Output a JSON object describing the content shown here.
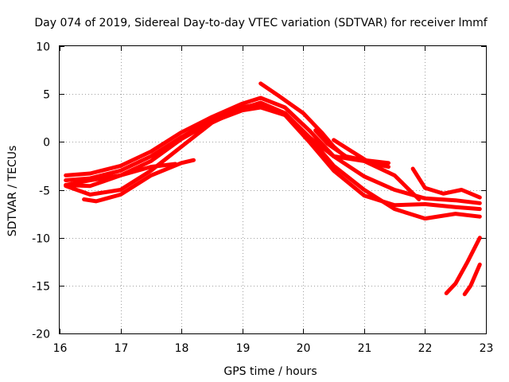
{
  "chart_data": {
    "type": "scatter",
    "title": "Day 074 of 2019, Sidereal Day-to-day VTEC variation (SDTVAR) for receiver lmmf",
    "xlabel": "GPS time / hours",
    "ylabel": "SDTVAR / TECUs",
    "xlim": [
      16,
      23
    ],
    "ylim": [
      -20,
      10
    ],
    "xticks": [
      16,
      17,
      18,
      19,
      20,
      21,
      22,
      23
    ],
    "xtick_labels": [
      "16",
      "17",
      "18",
      "19",
      "20",
      "21",
      "22",
      "23"
    ],
    "yticks": [
      -20,
      -15,
      -10,
      -5,
      0,
      5,
      10
    ],
    "ytick_labels": [
      "-20",
      "-15",
      "-10",
      "-5",
      "0",
      "5",
      "10"
    ],
    "grid": true,
    "marker": "plus",
    "color": "#ff0000",
    "series": [
      {
        "name": "trace-1",
        "x": [
          16.1,
          16.5,
          17.0,
          17.5,
          18.0,
          18.5,
          19.0,
          19.3,
          19.7,
          20.1,
          20.5,
          21.0,
          21.5,
          22.0,
          22.5,
          22.9
        ],
        "y": [
          -4.0,
          -3.8,
          -3.0,
          -1.5,
          0.5,
          2.3,
          3.6,
          4.0,
          3.0,
          0.5,
          -2.5,
          -5.0,
          -7.0,
          -8.0,
          -7.5,
          -7.8
        ]
      },
      {
        "name": "trace-2",
        "x": [
          16.1,
          16.5,
          17.0,
          17.5,
          18.0,
          18.5,
          19.0,
          19.3,
          19.7,
          20.1,
          20.5,
          21.0,
          21.5,
          22.0,
          22.5,
          22.9
        ],
        "y": [
          -3.5,
          -3.3,
          -2.5,
          -1.0,
          1.0,
          2.6,
          4.0,
          4.6,
          3.6,
          1.2,
          -1.5,
          -3.6,
          -5.0,
          -5.9,
          -6.1,
          -6.4
        ]
      },
      {
        "name": "trace-3",
        "x": [
          16.1,
          16.5,
          17.0,
          17.5,
          18.0,
          18.5,
          19.0,
          19.3,
          19.7,
          20.1,
          20.5,
          21.0,
          21.5,
          22.0,
          22.5,
          22.9
        ],
        "y": [
          -4.5,
          -4.6,
          -3.5,
          -2.0,
          0.3,
          2.1,
          3.3,
          3.6,
          2.8,
          0.0,
          -3.0,
          -5.6,
          -6.6,
          -6.5,
          -6.8,
          -7.0
        ]
      },
      {
        "name": "trace-4",
        "x": [
          16.1,
          16.5,
          17.0,
          17.5,
          18.0,
          18.5,
          19.0,
          19.3,
          19.7,
          20.1,
          20.5,
          21.0,
          21.5,
          21.9
        ],
        "y": [
          -4.6,
          -5.5,
          -5.0,
          -3.0,
          -0.5,
          2.0,
          3.5,
          4.1,
          3.0,
          0.5,
          -1.5,
          -2.0,
          -3.5,
          -6.0
        ]
      },
      {
        "name": "trace-5",
        "x": [
          16.1,
          16.5,
          17.0,
          17.5,
          17.9
        ],
        "y": [
          -4.5,
          -4.0,
          -3.5,
          -2.6,
          -2.3
        ]
      },
      {
        "name": "trace-6",
        "x": [
          16.4,
          16.6,
          17.0,
          17.5,
          18.0,
          18.2
        ],
        "y": [
          -6.0,
          -6.2,
          -5.5,
          -3.5,
          -2.2,
          -1.9
        ]
      },
      {
        "name": "trace-7",
        "x": [
          19.3,
          19.6,
          20.0,
          20.3,
          20.5,
          20.7
        ],
        "y": [
          6.1,
          4.8,
          3.0,
          1.0,
          -0.5,
          -1.6
        ]
      },
      {
        "name": "trace-8",
        "x": [
          20.2,
          20.4,
          20.7,
          21.0,
          21.4
        ],
        "y": [
          1.2,
          -0.2,
          -1.5,
          -1.9,
          -2.2
        ]
      },
      {
        "name": "trace-9",
        "x": [
          20.5,
          20.8,
          21.1,
          21.4
        ],
        "y": [
          0.2,
          -1.0,
          -2.2,
          -2.6
        ]
      },
      {
        "name": "trace-10",
        "x": [
          21.8,
          22.0,
          22.3,
          22.6,
          22.9
        ],
        "y": [
          -2.8,
          -4.8,
          -5.4,
          -5.0,
          -5.8
        ]
      },
      {
        "name": "trace-11",
        "x": [
          22.35,
          22.5,
          22.7,
          22.9
        ],
        "y": [
          -15.8,
          -14.8,
          -12.5,
          -10.0
        ]
      },
      {
        "name": "trace-12",
        "x": [
          22.65,
          22.75,
          22.9
        ],
        "y": [
          -15.9,
          -15.0,
          -12.8
        ]
      }
    ]
  }
}
